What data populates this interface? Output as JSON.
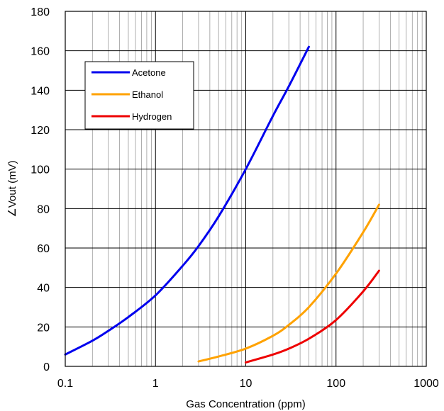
{
  "chart_data": {
    "type": "line",
    "xlabel": "Gas Concentration (ppm)",
    "ylabel": "∠Vout (mV)",
    "xscale": "log",
    "xlim": [
      0.1,
      1000
    ],
    "ylim": [
      0,
      180
    ],
    "x_ticks": [
      "0.1",
      "1",
      "10",
      "100",
      "1000"
    ],
    "y_ticks": [
      "0",
      "20",
      "40",
      "60",
      "80",
      "100",
      "120",
      "140",
      "160",
      "180"
    ],
    "grid": true,
    "legend_position": "top-left",
    "series": [
      {
        "name": "Acetone",
        "color": "#0000ee",
        "x": [
          0.1,
          0.2,
          0.3,
          0.5,
          1,
          2,
          3,
          5,
          10,
          20,
          30,
          50
        ],
        "y": [
          6,
          13,
          18,
          25,
          36,
          51,
          61,
          76,
          100,
          127,
          142,
          162
        ]
      },
      {
        "name": "Ethanol",
        "color": "#ffa200",
        "x": [
          3,
          5,
          10,
          20,
          30,
          50,
          100,
          200,
          300
        ],
        "y": [
          2.5,
          5,
          9,
          15.5,
          21,
          30,
          47,
          68,
          82
        ]
      },
      {
        "name": "Hydrogen",
        "color": "#ee0000",
        "x": [
          10,
          20,
          30,
          50,
          100,
          200,
          300
        ],
        "y": [
          2,
          6,
          9,
          14,
          23.5,
          38,
          48.5
        ]
      }
    ]
  }
}
